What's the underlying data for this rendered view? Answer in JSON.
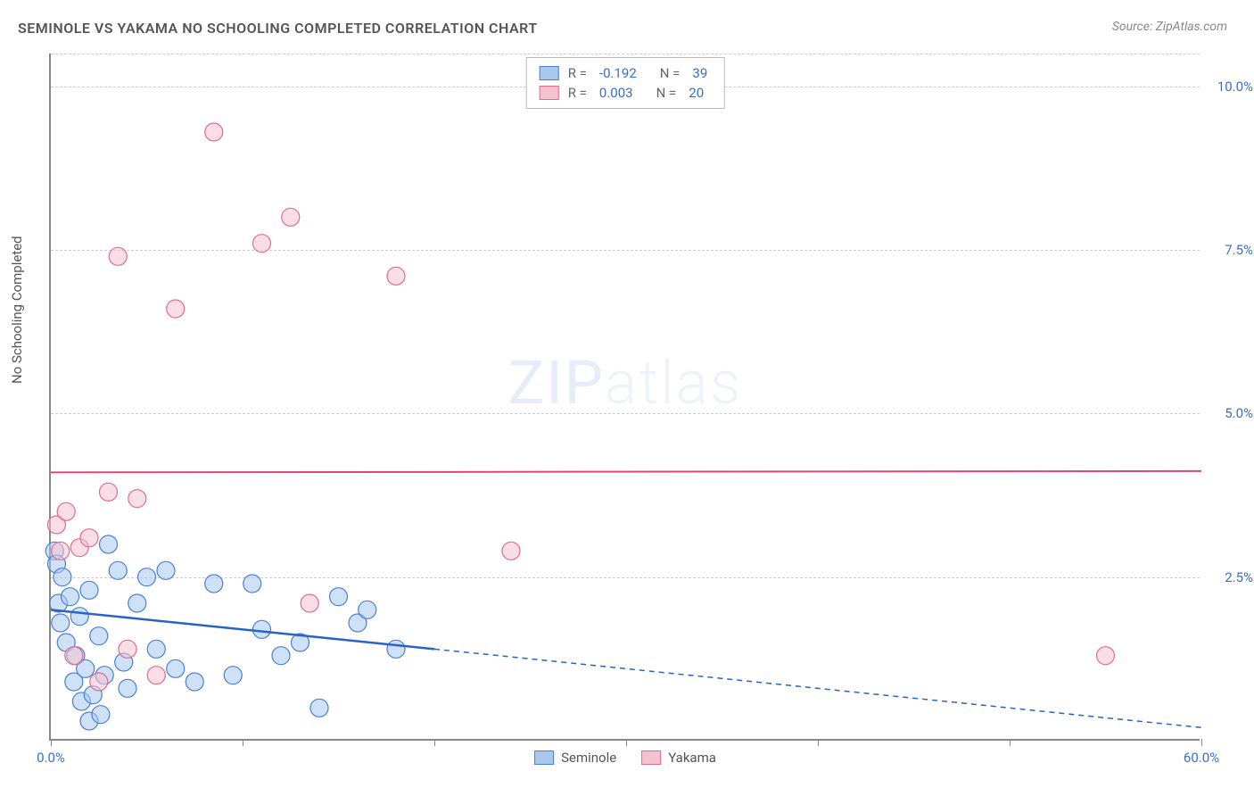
{
  "title": "SEMINOLE VS YAKAMA NO SCHOOLING COMPLETED CORRELATION CHART",
  "source": "Source: ZipAtlas.com",
  "y_axis_label": "No Schooling Completed",
  "watermark_a": "ZIP",
  "watermark_b": "atlas",
  "chart": {
    "type": "scatter",
    "xlim": [
      0,
      60
    ],
    "ylim": [
      0,
      10.5
    ],
    "x_ticks": [
      0,
      10,
      20,
      30,
      40,
      50,
      60
    ],
    "x_tick_labels": {
      "0": "0.0%",
      "60": "60.0%"
    },
    "y_ticks": [
      2.5,
      5.0,
      7.5,
      10.0
    ],
    "y_tick_labels": [
      "2.5%",
      "5.0%",
      "7.5%",
      "10.0%"
    ],
    "grid_color": "#cccccc",
    "background_color": "#ffffff",
    "axis_color": "#888888",
    "tick_label_color": "#3b6fc9",
    "marker_radius": 10,
    "marker_opacity": 0.55,
    "series": [
      {
        "name": "Seminole",
        "color_fill": "#a8c8f0",
        "color_stroke": "#4a7fd6",
        "R": "-0.192",
        "N": "39",
        "trend": {
          "x1": 0,
          "y1": 2.0,
          "x2_solid": 20,
          "y2_solid": 1.4,
          "x2": 60,
          "y2": 0.2,
          "color": "#2a62c9",
          "width": 2.5
        },
        "points": [
          [
            0.2,
            2.9
          ],
          [
            0.3,
            2.7
          ],
          [
            0.4,
            2.1
          ],
          [
            0.5,
            1.8
          ],
          [
            0.6,
            2.5
          ],
          [
            0.8,
            1.5
          ],
          [
            1.0,
            2.2
          ],
          [
            1.2,
            0.9
          ],
          [
            1.3,
            1.3
          ],
          [
            1.5,
            1.9
          ],
          [
            1.6,
            0.6
          ],
          [
            1.8,
            1.1
          ],
          [
            2.0,
            2.3
          ],
          [
            2.2,
            0.7
          ],
          [
            2.5,
            1.6
          ],
          [
            2.8,
            1.0
          ],
          [
            2.0,
            0.3
          ],
          [
            2.6,
            0.4
          ],
          [
            3.0,
            3.0
          ],
          [
            3.5,
            2.6
          ],
          [
            3.8,
            1.2
          ],
          [
            4.0,
            0.8
          ],
          [
            4.5,
            2.1
          ],
          [
            5.0,
            2.5
          ],
          [
            5.5,
            1.4
          ],
          [
            6.0,
            2.6
          ],
          [
            6.5,
            1.1
          ],
          [
            7.5,
            0.9
          ],
          [
            8.5,
            2.4
          ],
          [
            9.5,
            1.0
          ],
          [
            10.5,
            2.4
          ],
          [
            11.0,
            1.7
          ],
          [
            12.0,
            1.3
          ],
          [
            13.0,
            1.5
          ],
          [
            14.0,
            0.5
          ],
          [
            15.0,
            2.2
          ],
          [
            16.0,
            1.8
          ],
          [
            16.5,
            2.0
          ],
          [
            18.0,
            1.4
          ]
        ]
      },
      {
        "name": "Yakama",
        "color_fill": "#f5c2cf",
        "color_stroke": "#e16b8e",
        "R": "0.003",
        "N": "20",
        "trend": {
          "x1": 0,
          "y1": 4.1,
          "x2_solid": 60,
          "y2_solid": 4.12,
          "x2": 60,
          "y2": 4.12,
          "color": "#e0457a",
          "width": 2
        },
        "points": [
          [
            0.3,
            3.3
          ],
          [
            0.5,
            2.9
          ],
          [
            0.8,
            3.5
          ],
          [
            1.2,
            1.3
          ],
          [
            1.5,
            2.95
          ],
          [
            2.0,
            3.1
          ],
          [
            2.5,
            0.9
          ],
          [
            3.0,
            3.8
          ],
          [
            3.5,
            7.4
          ],
          [
            4.5,
            3.7
          ],
          [
            5.5,
            1.0
          ],
          [
            6.5,
            6.6
          ],
          [
            8.5,
            9.3
          ],
          [
            11.0,
            7.6
          ],
          [
            12.5,
            8.0
          ],
          [
            13.5,
            2.1
          ],
          [
            18.0,
            7.1
          ],
          [
            24.0,
            2.9
          ],
          [
            55.0,
            1.3
          ],
          [
            4.0,
            1.4
          ]
        ]
      }
    ]
  },
  "legend_top_rows": [
    {
      "swatch_fill": "#a8c8f0",
      "swatch_stroke": "#4a7fd6",
      "R_label": "R =",
      "R": "-0.192",
      "N_label": "N =",
      "N": "39"
    },
    {
      "swatch_fill": "#f5c2cf",
      "swatch_stroke": "#e16b8e",
      "R_label": "R =",
      "R": "0.003",
      "N_label": "N =",
      "N": "20"
    }
  ],
  "legend_bottom": [
    {
      "swatch_fill": "#a8c8f0",
      "swatch_stroke": "#4a7fd6",
      "label": "Seminole"
    },
    {
      "swatch_fill": "#f5c2cf",
      "swatch_stroke": "#e16b8e",
      "label": "Yakama"
    }
  ]
}
